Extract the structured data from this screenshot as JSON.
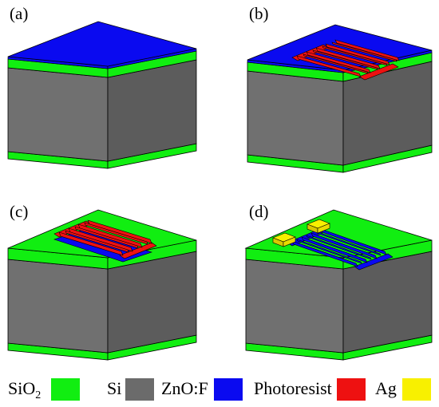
{
  "panels": [
    {
      "label": "(a)",
      "top_layer": "ZnO:F",
      "patterned": "none"
    },
    {
      "label": "(b)",
      "top_layer": "ZnO:F",
      "patterned": "Photoresist"
    },
    {
      "label": "(c)",
      "top_layer": "SiO2",
      "patterned": "Photoresist on ZnO:F"
    },
    {
      "label": "(d)",
      "top_layer": "SiO2",
      "patterned": "ZnO:F with Ag contacts"
    }
  ],
  "legend": [
    {
      "text": "SiO",
      "sub": "2",
      "color": "#11ee11"
    },
    {
      "text": "Si",
      "sub": "",
      "color": "#6b6b6b"
    },
    {
      "text": "ZnO:F",
      "sub": "",
      "color": "#0a0af0"
    },
    {
      "text": "Photoresist",
      "sub": "",
      "color": "#ee1111"
    },
    {
      "text": "Ag",
      "sub": "",
      "color": "#f8f000"
    }
  ],
  "colors": {
    "sio2": "#11ee11",
    "si_front": "#707070",
    "si_side": "#5c5c5c",
    "zno": "#0a0af0",
    "photoresist": "#ee1111",
    "ag": "#f8f000"
  }
}
